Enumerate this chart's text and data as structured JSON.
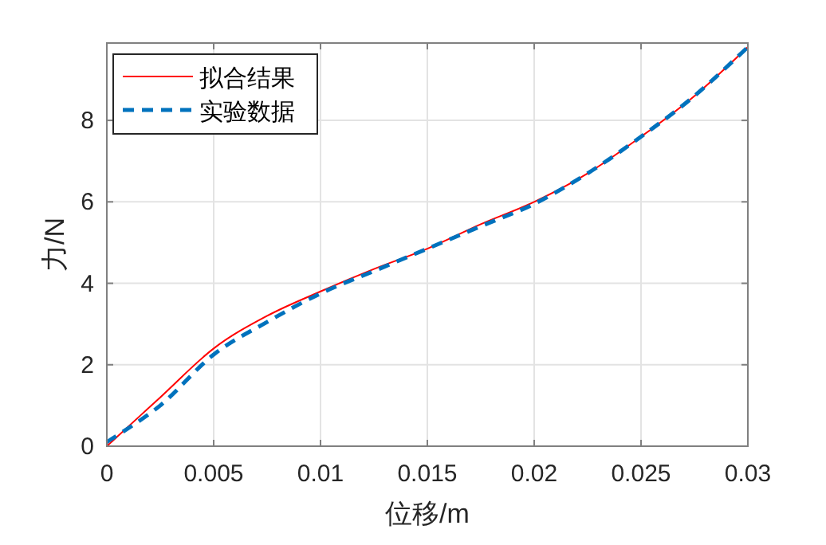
{
  "chart_data": {
    "type": "line",
    "xlabel": "位移/m",
    "ylabel": "力/N",
    "x": [
      0,
      0.0025,
      0.005,
      0.0075,
      0.01,
      0.0125,
      0.015,
      0.0175,
      0.02,
      0.0225,
      0.025,
      0.0275,
      0.03
    ],
    "series": [
      {
        "name": "拟合结果",
        "color": "#ff0000",
        "line_style": "solid",
        "values": [
          0,
          1.2,
          2.4,
          3.2,
          3.8,
          4.35,
          4.85,
          5.45,
          6.0,
          6.7,
          7.6,
          8.6,
          9.8
        ]
      },
      {
        "name": "实验数据",
        "color": "#0072bd",
        "line_style": "dashed",
        "values": [
          0.1,
          1.0,
          2.25,
          3.05,
          3.75,
          4.3,
          4.85,
          5.4,
          5.95,
          6.7,
          7.6,
          8.6,
          9.8
        ]
      }
    ],
    "xlim": [
      0,
      0.03
    ],
    "ylim": [
      0,
      9.9
    ],
    "xticks": [
      0,
      0.005,
      0.01,
      0.015,
      0.02,
      0.025,
      0.03
    ],
    "yticks": [
      0,
      2,
      4,
      6,
      8
    ],
    "grid": true,
    "legend": "top left",
    "marker": "none"
  }
}
